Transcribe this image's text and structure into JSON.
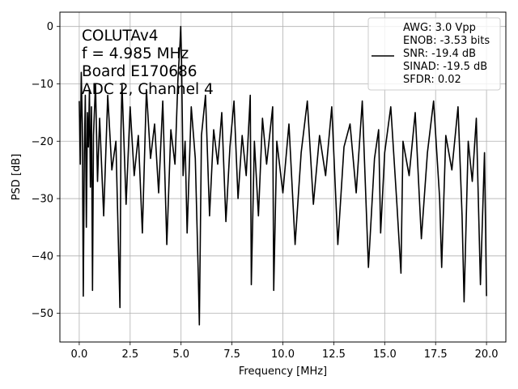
{
  "chart_data": {
    "type": "line",
    "title": "",
    "xlabel": "Frequency [MHz]",
    "ylabel": "PSD [dB]",
    "xlim": [
      -0.95,
      20.95
    ],
    "ylim": [
      -55,
      2.5
    ],
    "xticks": [
      0.0,
      2.5,
      5.0,
      7.5,
      10.0,
      12.5,
      15.0,
      17.5,
      20.0
    ],
    "xtick_labels": [
      "0.0",
      "2.5",
      "5.0",
      "7.5",
      "10.0",
      "12.5",
      "15.0",
      "17.5",
      "20.0"
    ],
    "yticks": [
      0,
      -10,
      -20,
      -30,
      -40,
      -50
    ],
    "ytick_labels": [
      "0",
      "−10",
      "−20",
      "−30",
      "−40",
      "−50"
    ],
    "grid": true,
    "annotations": [
      "COLUTAv4",
      "f = 4.985 MHz",
      "Board E170686",
      "ADC 2, Channel 4"
    ],
    "legend": {
      "position": "upper right",
      "entries": [
        "AWG: 3.0 Vpp",
        "ENOB: -3.53 bits",
        "SNR: -19.4 dB",
        "SINAD: -19.5 dB",
        "SFDR: 0.02"
      ]
    },
    "series": [
      {
        "color": "#000000",
        "x": [
          0.0,
          0.05,
          0.1,
          0.15,
          0.2,
          0.25,
          0.3,
          0.35,
          0.4,
          0.45,
          0.5,
          0.55,
          0.6,
          0.65,
          0.7,
          0.8,
          0.9,
          1.0,
          1.2,
          1.4,
          1.6,
          1.8,
          2.0,
          2.05,
          2.1,
          2.3,
          2.5,
          2.7,
          2.9,
          3.1,
          3.3,
          3.5,
          3.7,
          3.9,
          4.1,
          4.3,
          4.5,
          4.7,
          4.85,
          4.95,
          4.985,
          5.02,
          5.1,
          5.2,
          5.3,
          5.5,
          5.7,
          5.85,
          5.9,
          6.0,
          6.2,
          6.4,
          6.6,
          6.8,
          7.0,
          7.2,
          7.4,
          7.6,
          7.8,
          8.0,
          8.2,
          8.4,
          8.45,
          8.6,
          8.8,
          9.0,
          9.2,
          9.5,
          9.55,
          9.7,
          10.0,
          10.3,
          10.6,
          10.9,
          11.2,
          11.5,
          11.8,
          12.1,
          12.4,
          12.7,
          13.0,
          13.3,
          13.6,
          13.9,
          14.2,
          14.5,
          14.7,
          14.8,
          15.0,
          15.3,
          15.6,
          15.8,
          15.9,
          16.2,
          16.5,
          16.8,
          17.1,
          17.4,
          17.7,
          17.8,
          18.0,
          18.3,
          18.6,
          18.8,
          18.9,
          19.1,
          19.3,
          19.5,
          19.7,
          19.9,
          20.0
        ],
        "y": [
          -13,
          -24,
          -8,
          -17,
          -47,
          -22,
          -12,
          -35,
          -15,
          -21,
          -11,
          -28,
          -14,
          -46,
          -19,
          -10,
          -27,
          -16,
          -33,
          -12,
          -25,
          -20,
          -49,
          -18,
          -10,
          -31,
          -14,
          -26,
          -19,
          -36,
          -11,
          -23,
          -17,
          -29,
          -13,
          -38,
          -18,
          -24,
          -9,
          -3,
          0,
          -5,
          -26,
          -20,
          -36,
          -14,
          -23,
          -44,
          -52,
          -19,
          -12,
          -33,
          -18,
          -24,
          -15,
          -34,
          -21,
          -13,
          -30,
          -19,
          -26,
          -12,
          -45,
          -20,
          -33,
          -16,
          -24,
          -14,
          -46,
          -20,
          -29,
          -17,
          -38,
          -22,
          -13,
          -31,
          -19,
          -26,
          -14,
          -38,
          -21,
          -17,
          -29,
          -13,
          -42,
          -23,
          -18,
          -36,
          -22,
          -14,
          -31,
          -43,
          -20,
          -26,
          -15,
          -37,
          -22,
          -13,
          -30,
          -42,
          -19,
          -25,
          -14,
          -33,
          -48,
          -20,
          -27,
          -16,
          -45,
          -22,
          -47
        ]
      }
    ]
  }
}
